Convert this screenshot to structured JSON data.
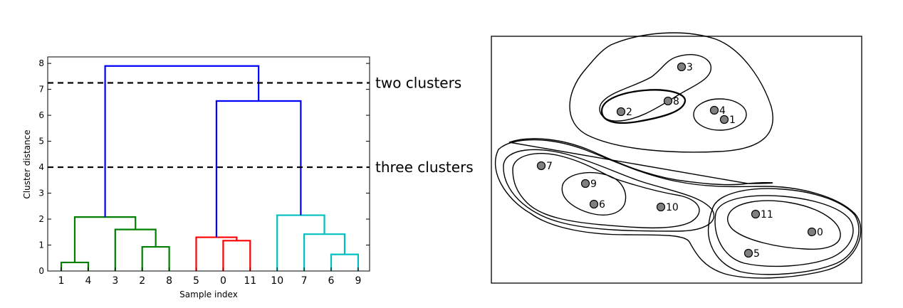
{
  "chart_data": [
    {
      "type": "dendrogram",
      "xlabel": "Sample index",
      "ylabel": "Cluster distance",
      "ylim": [
        0,
        8.25
      ],
      "yticks": [
        0,
        1,
        2,
        3,
        4,
        5,
        6,
        7,
        8
      ],
      "leaf_order": [
        "1",
        "4",
        "3",
        "2",
        "8",
        "5",
        "0",
        "11",
        "10",
        "7",
        "6",
        "9"
      ],
      "links": [
        {
          "left": 0,
          "right": 1,
          "height": 0.33,
          "color": "#008000"
        },
        {
          "left": 3,
          "right": 4,
          "height": 0.93,
          "color": "#008000"
        },
        {
          "left": 2,
          "right": 3.5,
          "height": 1.6,
          "color": "#008000"
        },
        {
          "left": 0.5,
          "right": 2.75,
          "height": 2.08,
          "color": "#008000"
        },
        {
          "left": 6,
          "right": 7,
          "height": 1.17,
          "color": "#ff0000"
        },
        {
          "left": 5,
          "right": 6.5,
          "height": 1.3,
          "color": "#ff0000"
        },
        {
          "left": 10,
          "right": 11,
          "height": 0.64,
          "color": "#00bfbf"
        },
        {
          "left": 9,
          "right": 10.5,
          "height": 1.42,
          "color": "#00bfbf"
        },
        {
          "left": 8,
          "right": 9.75,
          "height": 2.15,
          "color": "#00bfbf"
        },
        {
          "left": 5.75,
          "right": 8.875,
          "height": 6.55,
          "color": "#0000ff"
        },
        {
          "left": 1.625,
          "right": 7.3125,
          "height": 7.9,
          "color": "#0000ff"
        }
      ],
      "cut_lines": [
        {
          "height": 7.25,
          "label": "two clusters"
        },
        {
          "height": 4.0,
          "label": "three clusters"
        }
      ]
    },
    {
      "type": "scatter",
      "points": [
        {
          "label": "0"
        },
        {
          "label": "1"
        },
        {
          "label": "2"
        },
        {
          "label": "3"
        },
        {
          "label": "4"
        },
        {
          "label": "5"
        },
        {
          "label": "6"
        },
        {
          "label": "7"
        },
        {
          "label": "8"
        },
        {
          "label": "9"
        },
        {
          "label": "10"
        },
        {
          "label": "11"
        }
      ],
      "point_color": "#808080",
      "contours": "nested cluster outlines"
    }
  ]
}
